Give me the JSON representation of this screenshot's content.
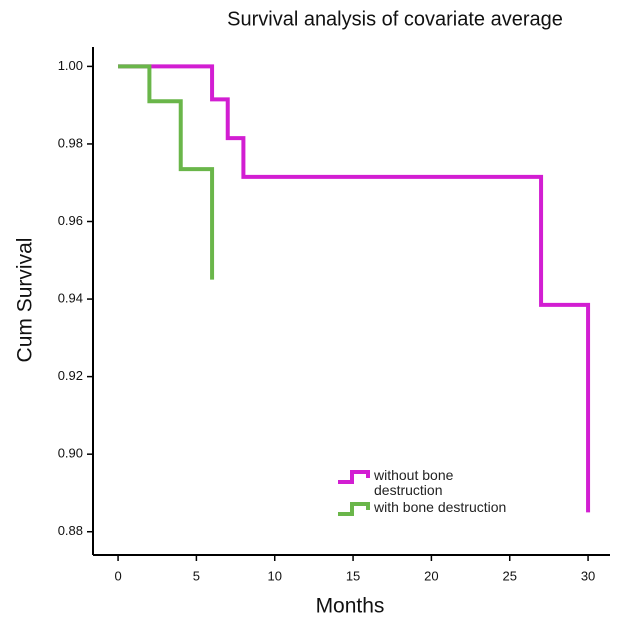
{
  "chart_data": {
    "type": "step",
    "title": "Survival analysis of covariate average",
    "x_label": "Months",
    "y_label": "Cum Survival",
    "series": [
      {
        "name": "without bone destruction",
        "color": "#d21ed2",
        "x": [
          0,
          6,
          7,
          8,
          27,
          30
        ],
        "values": [
          1.0,
          0.9915,
          0.9815,
          0.9715,
          0.9385,
          0.885
        ]
      },
      {
        "name": "with bone destruction",
        "color": "#6ab64a",
        "x": [
          0,
          2,
          4,
          6
        ],
        "values": [
          1.0,
          0.991,
          0.9735,
          0.945
        ]
      }
    ],
    "xlim": [
      -1.6,
      31.4
    ],
    "ylim": [
      0.874,
      1.005
    ],
    "xticks": [
      0,
      5,
      10,
      15,
      20,
      25,
      30
    ],
    "yticks": [
      {
        "value": 0.88,
        "label": "0.88"
      },
      {
        "value": 0.9,
        "label": "0.90"
      },
      {
        "value": 0.92,
        "label": "0.92"
      },
      {
        "value": 0.94,
        "label": "0.94"
      },
      {
        "value": 0.96,
        "label": "0.96"
      },
      {
        "value": 0.98,
        "label": "0.98"
      },
      {
        "value": 1.0,
        "label": "1.00"
      }
    ],
    "grid": false,
    "legend": "lower center"
  }
}
